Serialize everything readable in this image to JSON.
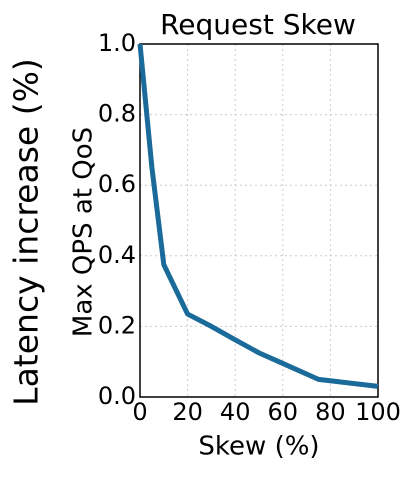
{
  "chart_data": {
    "type": "line",
    "title": "Request Skew",
    "xlabel": "Skew (%)",
    "ylabel": "Latency increase (%)",
    "ylabel2": "Max QPS at QoS",
    "x": [
      0,
      5,
      10,
      20,
      30,
      40,
      50,
      60,
      75,
      100
    ],
    "series": [
      {
        "name": "Max QPS at QoS",
        "color": "#1a6a9a",
        "values": [
          1.0,
          0.65,
          0.375,
          0.235,
          0.2,
          0.162,
          0.125,
          0.095,
          0.05,
          0.03
        ]
      }
    ],
    "xlim": [
      0,
      100
    ],
    "xticks": [
      0,
      20,
      40,
      60,
      80,
      100
    ],
    "ylim": [
      0,
      1
    ],
    "yticks": [
      {
        "value": 0,
        "label": "0.0"
      },
      0.2,
      0.4,
      0.6,
      0.8,
      {
        "value": 1,
        "label": "1.0"
      }
    ],
    "grid": true
  }
}
